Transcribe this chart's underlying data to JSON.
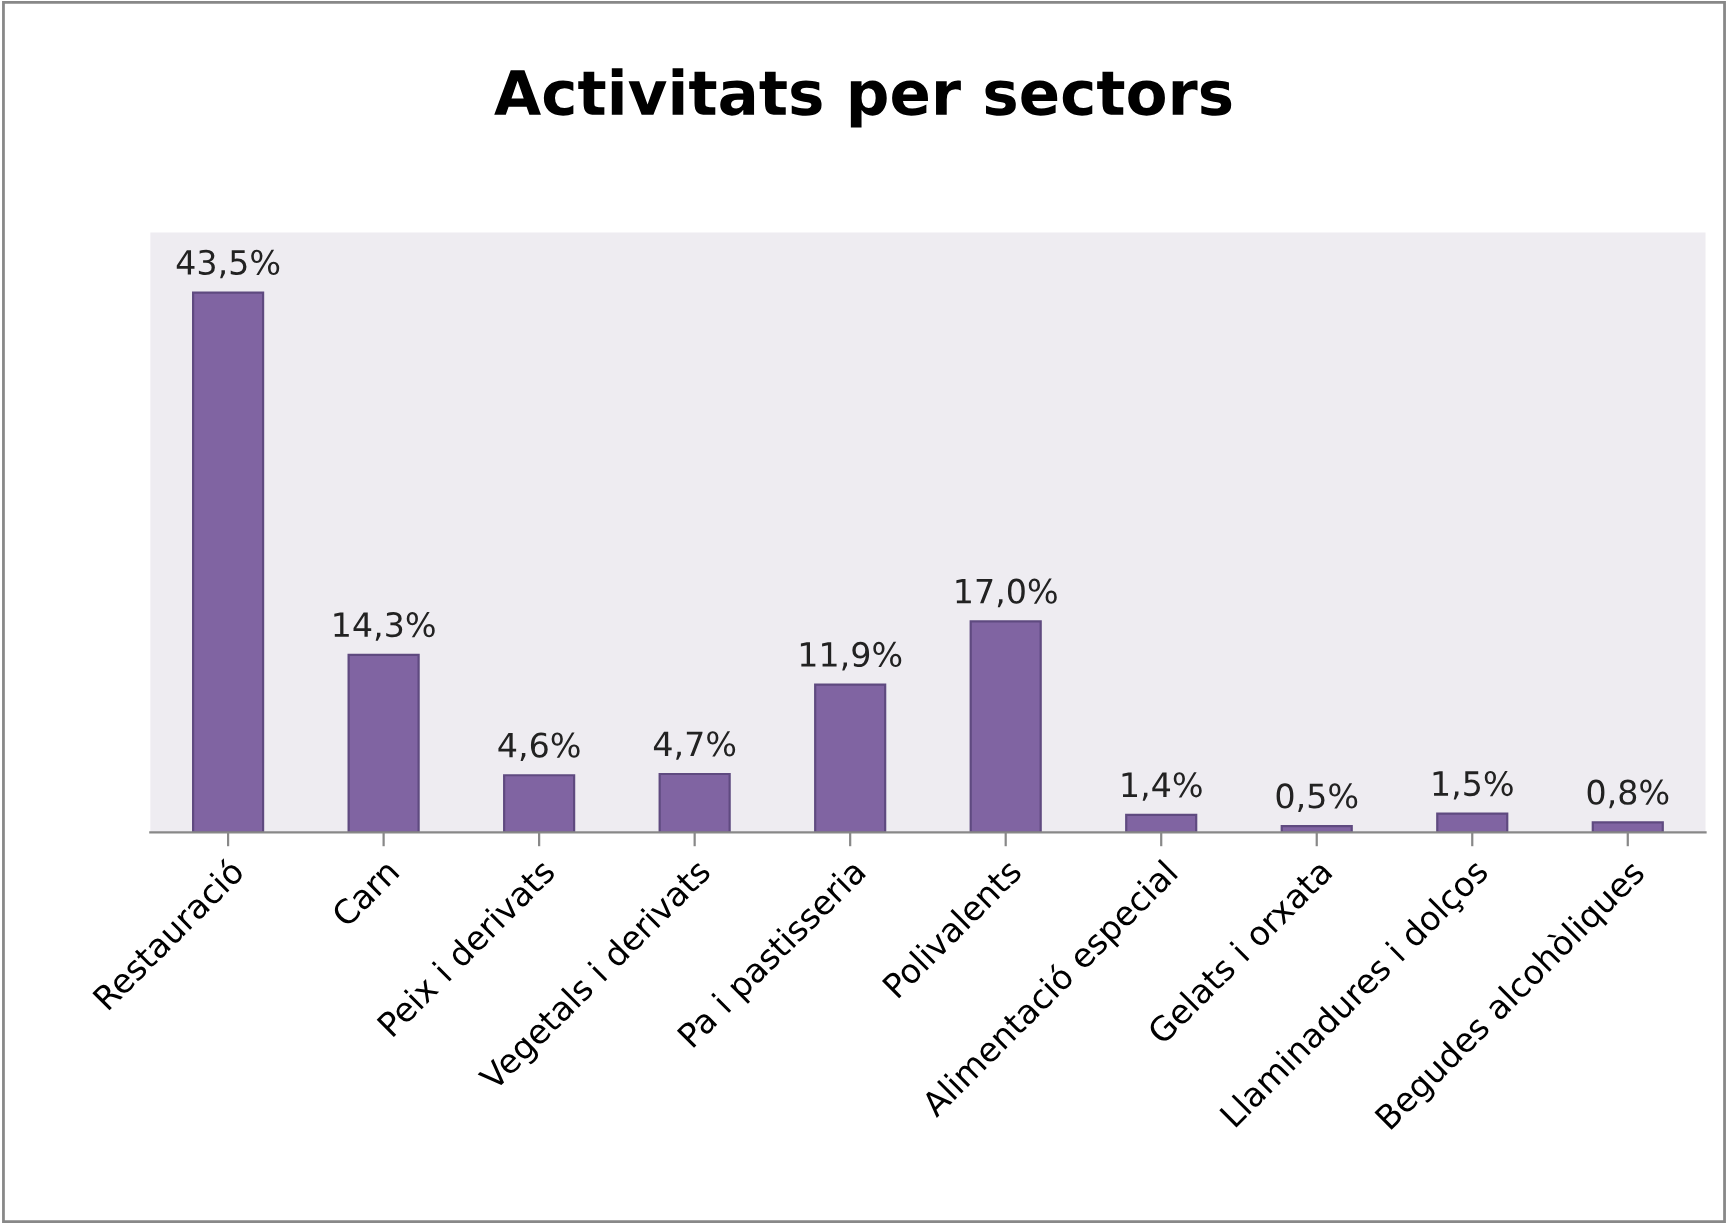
{
  "chart_data": {
    "type": "bar",
    "title": "Activitats per sectors",
    "categories": [
      "Restauració",
      "Carn",
      "Peix i derivats",
      "Vegetals i derivats",
      "Pa i pastisseria",
      "Polivalents",
      "Alimentació especial",
      "Gelats i orxata",
      "Llaminadures i dolços",
      "Begudes alcohòliques"
    ],
    "values": [
      43.5,
      14.3,
      4.6,
      4.7,
      11.9,
      17.0,
      1.4,
      0.5,
      1.5,
      0.8
    ],
    "value_labels": [
      "43,5%",
      "14,3%",
      "4,6%",
      "4,7%",
      "11,9%",
      "17,0%",
      "1,4%",
      "0,5%",
      "1,5%",
      "0,8%"
    ],
    "color": "#8064a2",
    "tick_labels": "x"
  }
}
